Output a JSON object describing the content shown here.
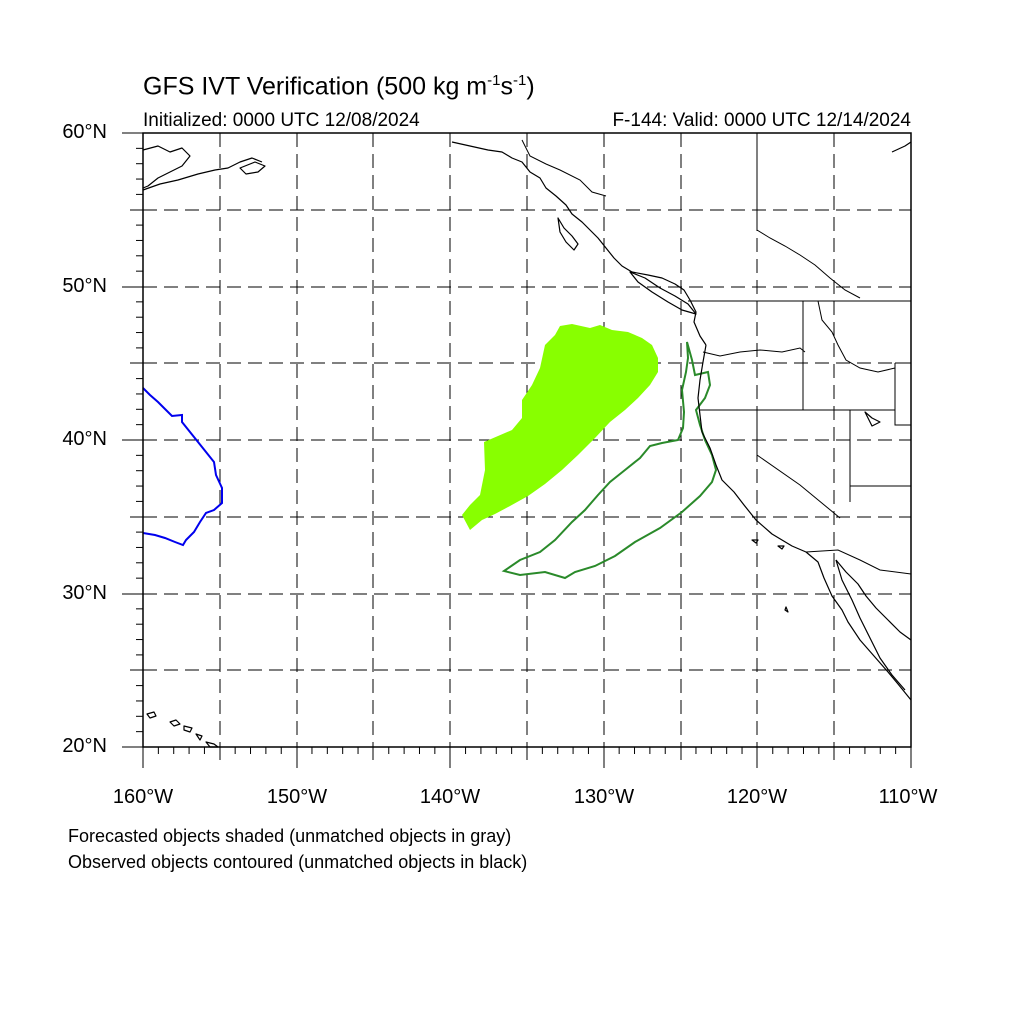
{
  "title": {
    "text_main": "GFS IVT Verification (500 kg m",
    "exp1": "-1",
    "mid": "s",
    "exp2": "-1",
    "close": ")"
  },
  "initialized": "Initialized: 0000 UTC 12/08/2024",
  "valid": "F-144: Valid: 0000 UTC 12/14/2024",
  "lat_labels": [
    "60°N",
    "50°N",
    "40°N",
    "30°N",
    "20°N"
  ],
  "lon_labels": [
    "160°W",
    "150°W",
    "140°W",
    "130°W",
    "120°W",
    "110°W"
  ],
  "notes": [
    "Forecasted objects shaded (unmatched objects in gray)",
    "Observed objects contoured (unmatched objects in black)"
  ],
  "colors": {
    "forecast_fill": "#88ff00",
    "observed_contour": "#2a8a2a",
    "unmatched_observed": "#0000ee",
    "coastline": "#000000"
  }
}
